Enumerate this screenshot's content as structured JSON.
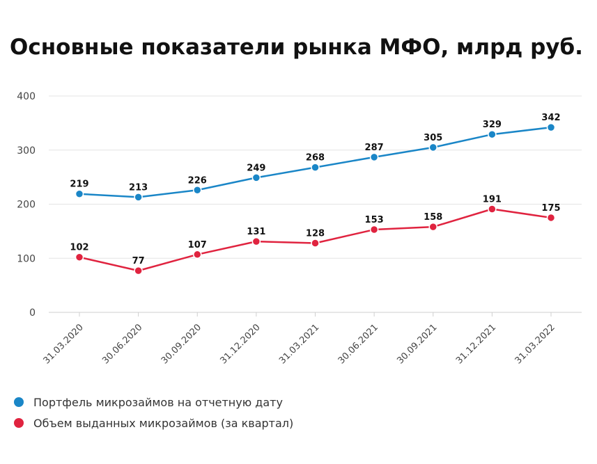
{
  "chart_data": {
    "type": "line",
    "title": "Основные показатели рынка МФО, млрд руб.",
    "xlabel": "",
    "ylabel": "",
    "categories": [
      "31.03.2020",
      "30.06.2020",
      "30.09.2020",
      "31.12.2020",
      "31.03.2021",
      "30.06.2021",
      "30.09.2021",
      "31.12.2021",
      "31.03.2022"
    ],
    "y_ticks": [
      0,
      100,
      200,
      300,
      400
    ],
    "ylim": [
      0,
      400
    ],
    "grid": true,
    "legend_position": "bottom-left",
    "series": [
      {
        "name": "Портфель микрозаймов на отчетную дату",
        "color": "#1a86c7",
        "values": [
          219,
          213,
          226,
          249,
          268,
          287,
          305,
          329,
          342
        ]
      },
      {
        "name": "Объем выданных микрозаймов (за квартал)",
        "color": "#e0233f",
        "values": [
          102,
          77,
          107,
          131,
          128,
          153,
          158,
          191,
          175
        ]
      }
    ]
  }
}
